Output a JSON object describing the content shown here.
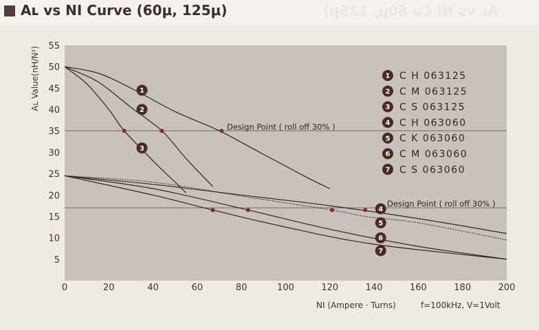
{
  "header": {
    "title": "Aʟ vs NI Curve (60μ, 125μ)",
    "ghost_title": "Aʟ vs NI Cu   60μ, 125μ)"
  },
  "chart_data": {
    "type": "line",
    "title": "Aʟ vs NI Curve (60μ, 125μ)",
    "xlabel": "NI (Ampere · Turns)",
    "ylabel": "Aʟ Value(nH/N²)",
    "condition": "f=100kHz, V=1Volt",
    "xlim": [
      0,
      200
    ],
    "ylim": [
      0,
      55
    ],
    "x_ticks": [
      "0",
      "20",
      "40",
      "60",
      "80",
      "100",
      "120",
      "140",
      "160",
      "180",
      "200"
    ],
    "y_ticks": [
      "5",
      "10",
      "15",
      "20",
      "25",
      "30",
      "35",
      "40",
      "45",
      "50",
      "55"
    ],
    "grid": false,
    "legend_position": "top-right",
    "series": [
      {
        "id": "1",
        "name": "C H 063125",
        "style": "solid",
        "x": [
          0,
          15,
          30,
          50,
          70,
          90,
          110,
          120
        ],
        "y": [
          50,
          48.5,
          45,
          39.5,
          35,
          29.5,
          24,
          21.5
        ]
      },
      {
        "id": "2",
        "name": "C M 063125",
        "style": "solid",
        "x": [
          0,
          15,
          30,
          44,
          55,
          67
        ],
        "y": [
          50,
          46.5,
          40.5,
          35,
          28.5,
          22
        ]
      },
      {
        "id": "3",
        "name": "C S 063125",
        "style": "solid",
        "x": [
          0,
          10,
          20,
          27,
          40,
          50,
          55
        ],
        "y": [
          50,
          46,
          40,
          35,
          28,
          23,
          20.5
        ]
      },
      {
        "id": "4",
        "name": "C H 063060",
        "style": "solid",
        "x": [
          0,
          40,
          80,
          120,
          160,
          200
        ],
        "y": [
          24.5,
          22.5,
          20,
          17.5,
          14.5,
          11
        ]
      },
      {
        "id": "5",
        "name": "C K 063060",
        "style": "dotted",
        "x": [
          0,
          40,
          83,
          121,
          136,
          160,
          200
        ],
        "y": [
          24.5,
          23,
          19.5,
          16.5,
          15,
          13.5,
          9.5
        ]
      },
      {
        "id": "6",
        "name": "C M 063060",
        "style": "solid",
        "x": [
          0,
          40,
          83,
          120,
          160,
          200
        ],
        "y": [
          24.5,
          21.5,
          16.5,
          12,
          8,
          5
        ]
      },
      {
        "id": "7",
        "name": "C S 063060",
        "style": "solid",
        "x": [
          0,
          40,
          67,
          100,
          140,
          200
        ],
        "y": [
          24.5,
          20,
          16.5,
          12.5,
          8.5,
          5
        ]
      }
    ],
    "reference_lines": [
      {
        "axis": "y",
        "value": 35
      },
      {
        "axis": "y",
        "value": 17
      }
    ],
    "markers": [
      {
        "x": 27,
        "y": 35
      },
      {
        "x": 44,
        "y": 35
      },
      {
        "x": 71,
        "y": 35
      },
      {
        "x": 67,
        "y": 16.5
      },
      {
        "x": 83,
        "y": 16.5
      },
      {
        "x": 121,
        "y": 16.5
      },
      {
        "x": 136,
        "y": 16.5
      }
    ],
    "annotations": [
      {
        "text": "Design Point ( roll off 30% )"
      },
      {
        "text": "Design Point ( roll off 30% )"
      }
    ],
    "curve_badges": [
      {
        "id": "1",
        "x": 35,
        "y": 44.5
      },
      {
        "id": "2",
        "x": 35,
        "y": 40
      },
      {
        "id": "3",
        "x": 35,
        "y": 31
      },
      {
        "id": "4",
        "x": 143,
        "y": 16.8
      },
      {
        "id": "5",
        "x": 143,
        "y": 13.5
      },
      {
        "id": "6",
        "x": 143,
        "y": 10
      },
      {
        "id": "7",
        "x": 143,
        "y": 7
      }
    ]
  },
  "colors": {
    "plot_bg": "#c8c1bd",
    "curve": "#2e2624",
    "reference": "#6b5f5a",
    "marker": "#7c2f28",
    "badge": "#4b2a26",
    "title": "#3b2f2c"
  }
}
